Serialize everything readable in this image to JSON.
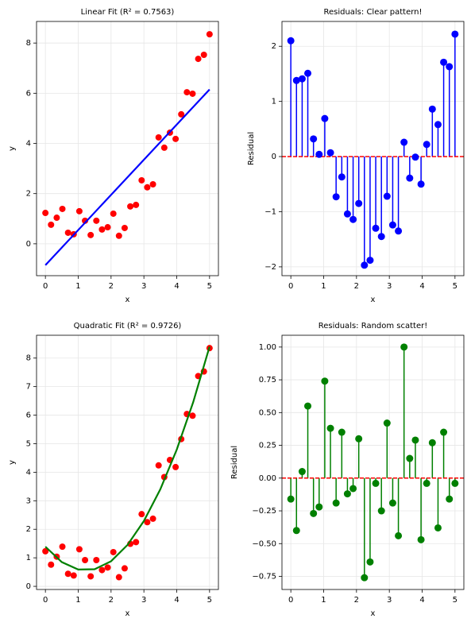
{
  "chart_data": [
    {
      "type": "scatter",
      "title": "Linear Fit (R² = 0.7563)",
      "xlabel": "x",
      "ylabel": "y",
      "x": [
        0,
        0.172,
        0.345,
        0.517,
        0.69,
        0.862,
        1.034,
        1.207,
        1.379,
        1.552,
        1.724,
        1.897,
        2.069,
        2.241,
        2.414,
        2.586,
        2.759,
        2.931,
        3.103,
        3.276,
        3.448,
        3.621,
        3.793,
        3.966,
        4.138,
        4.31,
        4.483,
        4.655,
        4.828,
        5
      ],
      "values": [
        1.23,
        0.76,
        1.04,
        1.39,
        0.44,
        0.38,
        1.3,
        0.92,
        0.35,
        0.92,
        0.57,
        0.66,
        1.2,
        0.32,
        0.63,
        1.49,
        1.55,
        2.53,
        2.25,
        2.37,
        4.24,
        3.83,
        4.43,
        4.18,
        5.16,
        6.04,
        5.98,
        7.37,
        7.53,
        8.35
      ],
      "color": "red",
      "fit": {
        "color": "blue",
        "x": [
          0,
          5
        ],
        "values": [
          -0.85,
          6.15
        ]
      },
      "xlim": [
        -0.27,
        5.27
      ],
      "xticks": [
        0,
        1,
        2,
        3,
        4,
        5
      ],
      "ylim": [
        -1.27,
        8.86
      ],
      "yticks": [
        0,
        2,
        4,
        6,
        8
      ],
      "grid": true
    },
    {
      "type": "stem",
      "title": "Residuals: Clear pattern!",
      "xlabel": "x",
      "ylabel": "Residual",
      "x": [
        0,
        0.172,
        0.345,
        0.517,
        0.69,
        0.862,
        1.034,
        1.207,
        1.379,
        1.552,
        1.724,
        1.897,
        2.069,
        2.241,
        2.414,
        2.586,
        2.759,
        2.931,
        3.103,
        3.276,
        3.448,
        3.621,
        3.793,
        3.966,
        4.138,
        4.31,
        4.483,
        4.655,
        4.828,
        5
      ],
      "values": [
        2.1,
        1.38,
        1.41,
        1.51,
        0.32,
        0.04,
        0.69,
        0.07,
        -0.73,
        -0.37,
        -1.04,
        -1.14,
        -0.85,
        -1.97,
        -1.88,
        -1.3,
        -1.45,
        -0.72,
        -1.24,
        -1.35,
        0.26,
        -0.39,
        -0.01,
        -0.5,
        0.22,
        0.86,
        0.58,
        1.71,
        1.63,
        2.22
      ],
      "color": "blue",
      "baseline": {
        "value": 0,
        "color": "red"
      },
      "xlim": [
        -0.27,
        5.27
      ],
      "xticks": [
        0,
        1,
        2,
        3,
        4,
        5
      ],
      "ylim": [
        -2.16,
        2.45
      ],
      "yticks": [
        {
          "value": -2,
          "label": "−2"
        },
        {
          "value": -1,
          "label": "−1"
        },
        0,
        1,
        2
      ],
      "grid": true
    },
    {
      "type": "scatter",
      "title": "Quadratic Fit (R² = 0.9726)",
      "xlabel": "x",
      "ylabel": "y",
      "x": [
        0,
        0.172,
        0.345,
        0.517,
        0.69,
        0.862,
        1.034,
        1.207,
        1.379,
        1.552,
        1.724,
        1.897,
        2.069,
        2.241,
        2.414,
        2.586,
        2.759,
        2.931,
        3.103,
        3.276,
        3.448,
        3.621,
        3.793,
        3.966,
        4.138,
        4.31,
        4.483,
        4.655,
        4.828,
        5
      ],
      "values": [
        1.23,
        0.76,
        1.04,
        1.39,
        0.44,
        0.38,
        1.3,
        0.92,
        0.35,
        0.92,
        0.57,
        0.66,
        1.2,
        0.32,
        0.63,
        1.49,
        1.55,
        2.53,
        2.25,
        2.37,
        4.24,
        3.83,
        4.43,
        4.18,
        5.16,
        6.04,
        5.98,
        7.37,
        7.53,
        8.35
      ],
      "color": "red",
      "fit": {
        "color": "green",
        "x": [
          0,
          0.5,
          1,
          1.5,
          2,
          2.5,
          3,
          3.5,
          4,
          4.5,
          5
        ],
        "values": [
          1.39,
          0.85,
          0.59,
          0.6,
          0.88,
          1.45,
          2.29,
          3.4,
          4.79,
          6.45,
          8.4
        ]
      },
      "xlim": [
        -0.27,
        5.27
      ],
      "xticks": [
        0,
        1,
        2,
        3,
        4,
        5
      ],
      "ylim": [
        -0.11,
        8.8
      ],
      "yticks": [
        0,
        1,
        2,
        3,
        4,
        5,
        6,
        7,
        8
      ],
      "grid": true
    },
    {
      "type": "stem",
      "title": "Residuals: Random scatter!",
      "xlabel": "x",
      "ylabel": "Residual",
      "x": [
        0,
        0.172,
        0.345,
        0.517,
        0.69,
        0.862,
        1.034,
        1.207,
        1.379,
        1.552,
        1.724,
        1.897,
        2.069,
        2.241,
        2.414,
        2.586,
        2.759,
        2.931,
        3.103,
        3.276,
        3.448,
        3.621,
        3.793,
        3.966,
        4.138,
        4.31,
        4.483,
        4.655,
        4.828,
        5
      ],
      "values": [
        -0.16,
        -0.4,
        0.05,
        0.55,
        -0.27,
        -0.22,
        0.74,
        0.38,
        -0.19,
        0.35,
        -0.12,
        -0.08,
        0.3,
        -0.76,
        -0.64,
        -0.04,
        -0.25,
        0.42,
        -0.19,
        -0.44,
        1.0,
        0.15,
        0.29,
        -0.47,
        -0.04,
        0.27,
        -0.38,
        0.35,
        -0.16,
        -0.04
      ],
      "color": "green",
      "baseline": {
        "value": 0,
        "color": "red"
      },
      "xlim": [
        -0.27,
        5.27
      ],
      "xticks": [
        0,
        1,
        2,
        3,
        4,
        5
      ],
      "ylim": [
        -0.85,
        1.09
      ],
      "yticks": [
        {
          "value": -0.75,
          "label": "−0.75"
        },
        {
          "value": -0.5,
          "label": "−0.50"
        },
        {
          "value": -0.25,
          "label": "−0.25"
        },
        {
          "value": 0,
          "label": "0.00"
        },
        {
          "value": 0.25,
          "label": "0.25"
        },
        {
          "value": 0.5,
          "label": "0.50"
        },
        {
          "value": 0.75,
          "label": "0.75"
        },
        {
          "value": 1,
          "label": "1.00"
        }
      ],
      "grid": true
    }
  ]
}
